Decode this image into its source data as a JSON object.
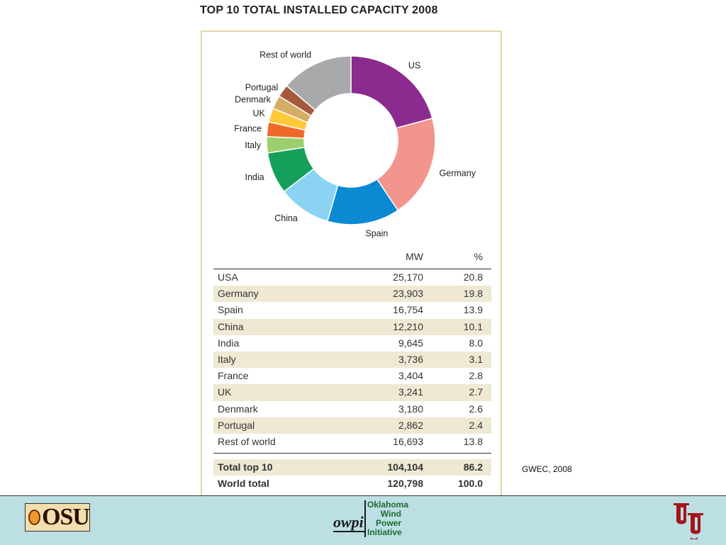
{
  "title": "TOP 10 TOTAL INSTALLED CAPACITY 2008",
  "source_note": "GWEC, 2008",
  "chart_data": {
    "type": "pie",
    "donut": true,
    "slices": [
      {
        "label": "US",
        "value": 20.8,
        "color": "#8b2a8f"
      },
      {
        "label": "Germany",
        "value": 19.8,
        "color": "#f2958c"
      },
      {
        "label": "Spain",
        "value": 13.9,
        "color": "#0b8ad2"
      },
      {
        "label": "China",
        "value": 10.1,
        "color": "#8ad3f3"
      },
      {
        "label": "India",
        "value": 8.0,
        "color": "#14a05a"
      },
      {
        "label": "Italy",
        "value": 3.1,
        "color": "#9bcf6c"
      },
      {
        "label": "France",
        "value": 2.8,
        "color": "#ef6a2a"
      },
      {
        "label": "UK",
        "value": 2.7,
        "color": "#ffc93a"
      },
      {
        "label": "Denmark",
        "value": 2.6,
        "color": "#d6ad64"
      },
      {
        "label": "Portugal",
        "value": 2.4,
        "color": "#a4583c"
      },
      {
        "label": "Rest of world",
        "value": 13.8,
        "color": "#a8a9ab"
      }
    ]
  },
  "table": {
    "headers": {
      "mw": "MW",
      "pct": "%"
    },
    "rows": [
      {
        "name": "USA",
        "mw": "25,170",
        "pct": "20.8"
      },
      {
        "name": "Germany",
        "mw": "23,903",
        "pct": "19.8"
      },
      {
        "name": "Spain",
        "mw": "16,754",
        "pct": "13.9"
      },
      {
        "name": "China",
        "mw": "12,210",
        "pct": "10.1"
      },
      {
        "name": "India",
        "mw": "9,645",
        "pct": "8.0"
      },
      {
        "name": "Italy",
        "mw": "3,736",
        "pct": "3.1"
      },
      {
        "name": "France",
        "mw": "3,404",
        "pct": "2.8"
      },
      {
        "name": "UK",
        "mw": "3,241",
        "pct": "2.7"
      },
      {
        "name": "Denmark",
        "mw": "3,180",
        "pct": "2.6"
      },
      {
        "name": "Portugal",
        "mw": "2,862",
        "pct": "2.4"
      },
      {
        "name": "Rest of world",
        "mw": "16,693",
        "pct": "13.8"
      }
    ],
    "totals": [
      {
        "name": "Total top 10",
        "mw": "104,104",
        "pct": "86.2"
      },
      {
        "name": "World total",
        "mw": "120,798",
        "pct": "100.0"
      }
    ]
  },
  "footer": {
    "osu_logo_text": "OSU",
    "owpi_mark": "owpi",
    "owpi_words": [
      "Oklahoma",
      "Wind",
      "Power",
      "Initiative"
    ],
    "ou_logo": "OU"
  }
}
